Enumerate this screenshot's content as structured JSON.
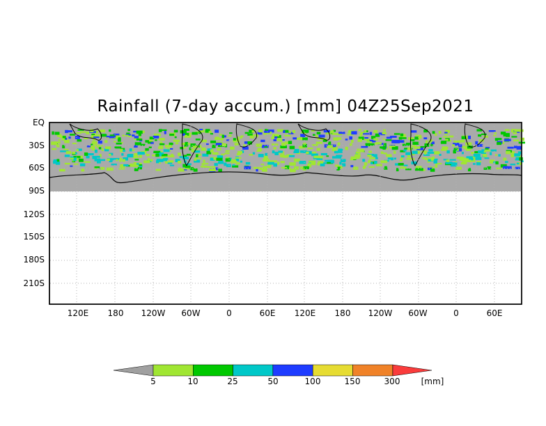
{
  "title": "Rainfall (7-day accum.) [mm] 04Z25Sep2021",
  "map": {
    "y_labels": [
      "EQ",
      "30S",
      "60S",
      "90S",
      "120S",
      "150S",
      "180S",
      "210S"
    ],
    "x_labels": [
      "120E",
      "180",
      "120W",
      "60W",
      "0",
      "60E",
      "120E",
      "180",
      "120W",
      "60W",
      "0",
      "60E"
    ],
    "ocean_color": "#aaaaaa",
    "grid": "dotted"
  },
  "colorbar": {
    "labels": [
      "5",
      "10",
      "25",
      "50",
      "100",
      "150",
      "300"
    ],
    "unit": "[mm]",
    "colors": [
      "#a0a0a0",
      "#a0e632",
      "#00c800",
      "#00c8c8",
      "#1e3cff",
      "#e6dc32",
      "#f08228",
      "#fa3c3c"
    ]
  }
}
